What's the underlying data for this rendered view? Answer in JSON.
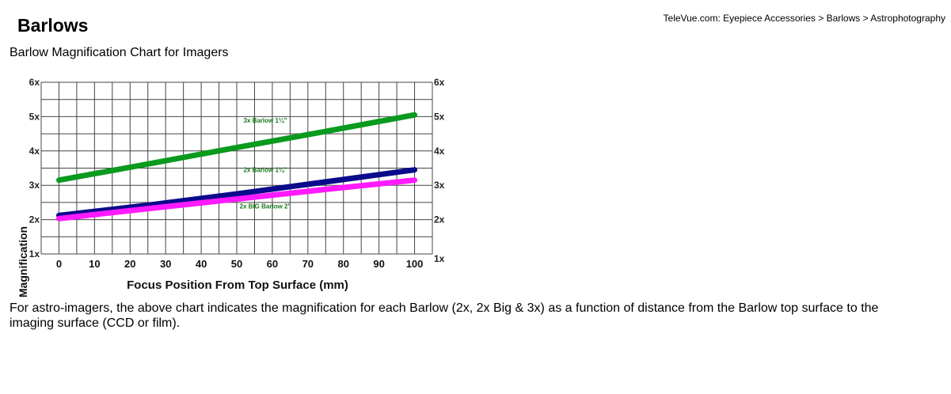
{
  "breadcrumb": {
    "items": [
      "TeleVue.com: Eyepiece Accessories",
      "Barlows",
      "Astrophotography"
    ],
    "separator": " > "
  },
  "page_title": "Barlows",
  "subtitle": "Barlow Magnification Chart for Imagers",
  "description": "For astro-imagers, the above chart indicates the magnification for each Barlow (2x, 2x Big & 3x) as a function of distance from the Barlow top surface to the imaging surface (CCD or film).",
  "chart_data": {
    "type": "line",
    "title": "",
    "xlabel": "Focus Position From Top Surface (mm)",
    "ylabel": "Magnification",
    "xlim": [
      -5,
      105
    ],
    "ylim": [
      1,
      6
    ],
    "xticks": [
      0,
      10,
      20,
      30,
      40,
      50,
      60,
      70,
      80,
      90,
      100
    ],
    "yticks": [
      1,
      2,
      3,
      4,
      5,
      6
    ],
    "ytick_labels": [
      "1x",
      "2x",
      "3x",
      "4x",
      "5x",
      "6x"
    ],
    "grid": true,
    "grid_step": {
      "x": 5,
      "y": 0.5
    },
    "series": [
      {
        "name": "3x Barlow 1¼\"",
        "color": "#0a9a1e",
        "x": [
          0,
          25,
          50,
          75,
          100
        ],
        "y": [
          3.15,
          3.62,
          4.1,
          4.57,
          5.05
        ]
      },
      {
        "name": "2x Barlow 1¼\"",
        "color": "#0a0a8c",
        "x": [
          0,
          25,
          50,
          75,
          100
        ],
        "y": [
          2.12,
          2.42,
          2.75,
          3.1,
          3.45
        ]
      },
      {
        "name": "2x BIG Barlow 2\"",
        "color": "#ff1aff",
        "x": [
          0,
          25,
          50,
          75,
          100
        ],
        "y": [
          2.03,
          2.32,
          2.6,
          2.88,
          3.15
        ]
      }
    ],
    "label_color": "#1a7a1a"
  }
}
